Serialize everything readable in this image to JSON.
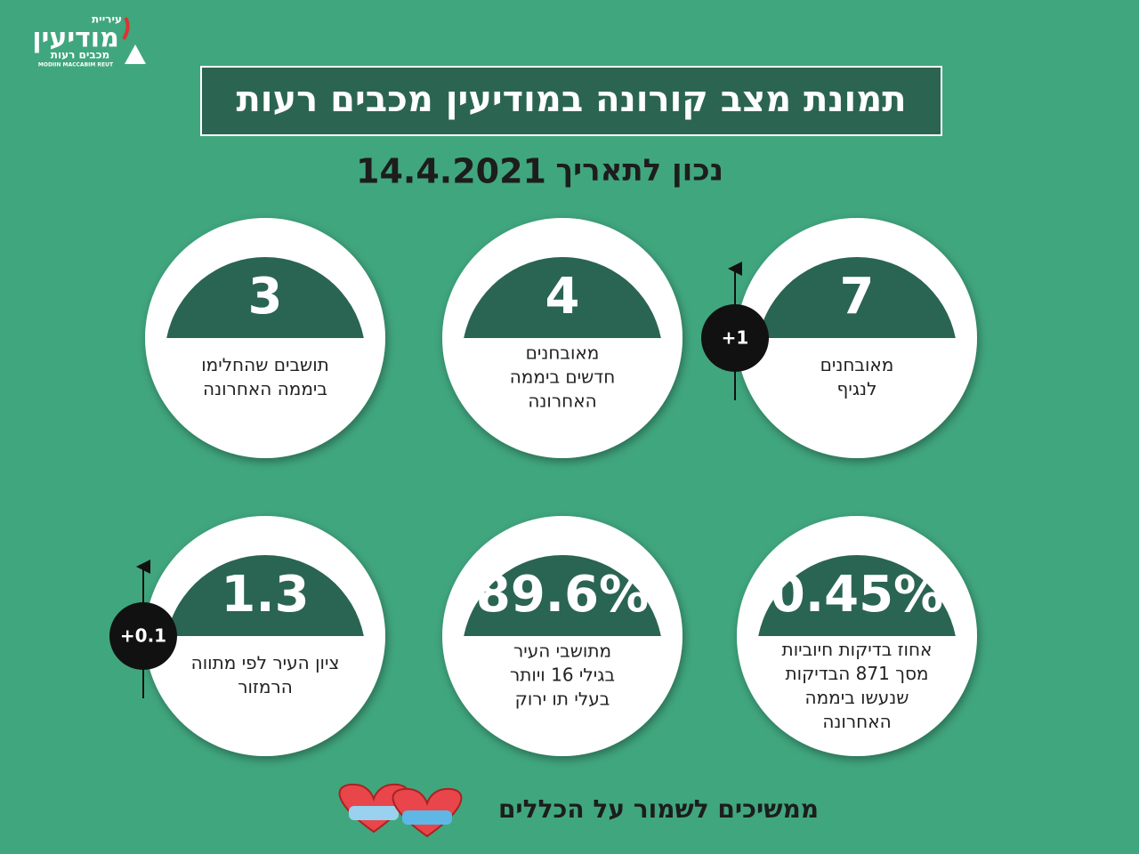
{
  "logo": {
    "top": "עיריית",
    "name": "מודיעין",
    "sub": "מכבים רעות",
    "latin": "MODIIN MACCABIM REUT"
  },
  "header": {
    "title": "תמונת מצב קורונה במודיעין מכבים רעות",
    "date_label": "נכון לתאריך",
    "date": "14.4.2021"
  },
  "cards": [
    {
      "value": "7",
      "label": [
        "מאובחנים",
        "לנגיף"
      ],
      "change": "+1"
    },
    {
      "value": "4",
      "label": [
        "מאובחנים",
        "חדשים ביממה",
        "האחרונה"
      ]
    },
    {
      "value": "3",
      "label": [
        "תושבים שהחלימו",
        "ביממה האחרונה"
      ]
    },
    {
      "value": "0.45%",
      "label": [
        "אחוז בדיקות חיוביות",
        "מסך 871 הבדיקות",
        "שנעשו ביממה",
        "האחרונה"
      ]
    },
    {
      "value": "89.6%",
      "label": [
        "מתושבי העיר",
        "בגילי 16 ויותר",
        "בעלי תו ירוק"
      ]
    },
    {
      "value": "1.3",
      "label": [
        "ציון העיר לפי מתווה",
        "הרמזור"
      ],
      "change": "+0.1"
    }
  ],
  "footer": {
    "text": "ממשיכים לשמור על הכללים"
  }
}
